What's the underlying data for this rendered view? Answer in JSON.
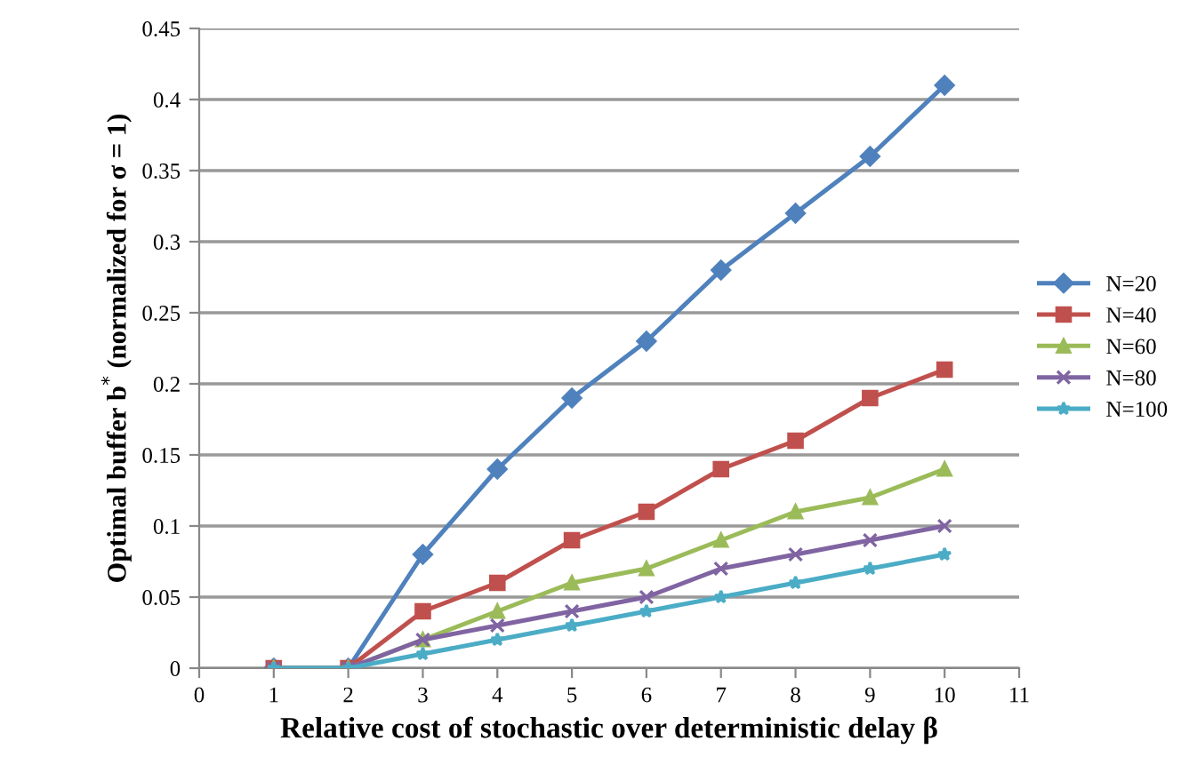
{
  "chart_data": {
    "type": "line",
    "xlabel": "Relative cost of stochastic over deterministic delay β",
    "ylabel": "Optimal buffer b$^{*}$ (normalized for σ = 1)",
    "x": [
      1,
      2,
      3,
      4,
      5,
      6,
      7,
      8,
      9,
      10
    ],
    "xlim": [
      0,
      11
    ],
    "xticks": [
      0,
      1,
      2,
      3,
      4,
      5,
      6,
      7,
      8,
      9,
      10,
      11
    ],
    "ylim": [
      0,
      0.45
    ],
    "yticks": [
      0,
      0.05,
      0.1,
      0.15,
      0.2,
      0.25,
      0.3,
      0.35,
      0.4,
      0.45
    ],
    "grid": "y",
    "legend": "right",
    "line_style": "solid",
    "series": [
      {
        "name": "N=20",
        "color": "#4f81bd",
        "marker": "diamond",
        "values": [
          0,
          0,
          0.08,
          0.14,
          0.19,
          0.23,
          0.28,
          0.32,
          0.36,
          0.41
        ]
      },
      {
        "name": "N=40",
        "color": "#c0504d",
        "marker": "square",
        "values": [
          0,
          0,
          0.04,
          0.06,
          0.09,
          0.11,
          0.14,
          0.16,
          0.19,
          0.21
        ]
      },
      {
        "name": "N=60",
        "color": "#9bbb59",
        "marker": "triangle",
        "values": [
          0,
          0,
          0.02,
          0.04,
          0.06,
          0.07,
          0.09,
          0.11,
          0.12,
          0.14
        ]
      },
      {
        "name": "N=80",
        "color": "#8064a2",
        "marker": "cross",
        "values": [
          0,
          0,
          0.02,
          0.03,
          0.04,
          0.05,
          0.07,
          0.08,
          0.09,
          0.1
        ]
      },
      {
        "name": "N=100",
        "color": "#4bacc6",
        "marker": "star",
        "values": [
          0,
          0,
          0.01,
          0.02,
          0.03,
          0.04,
          0.05,
          0.06,
          0.07,
          0.08
        ]
      }
    ]
  }
}
